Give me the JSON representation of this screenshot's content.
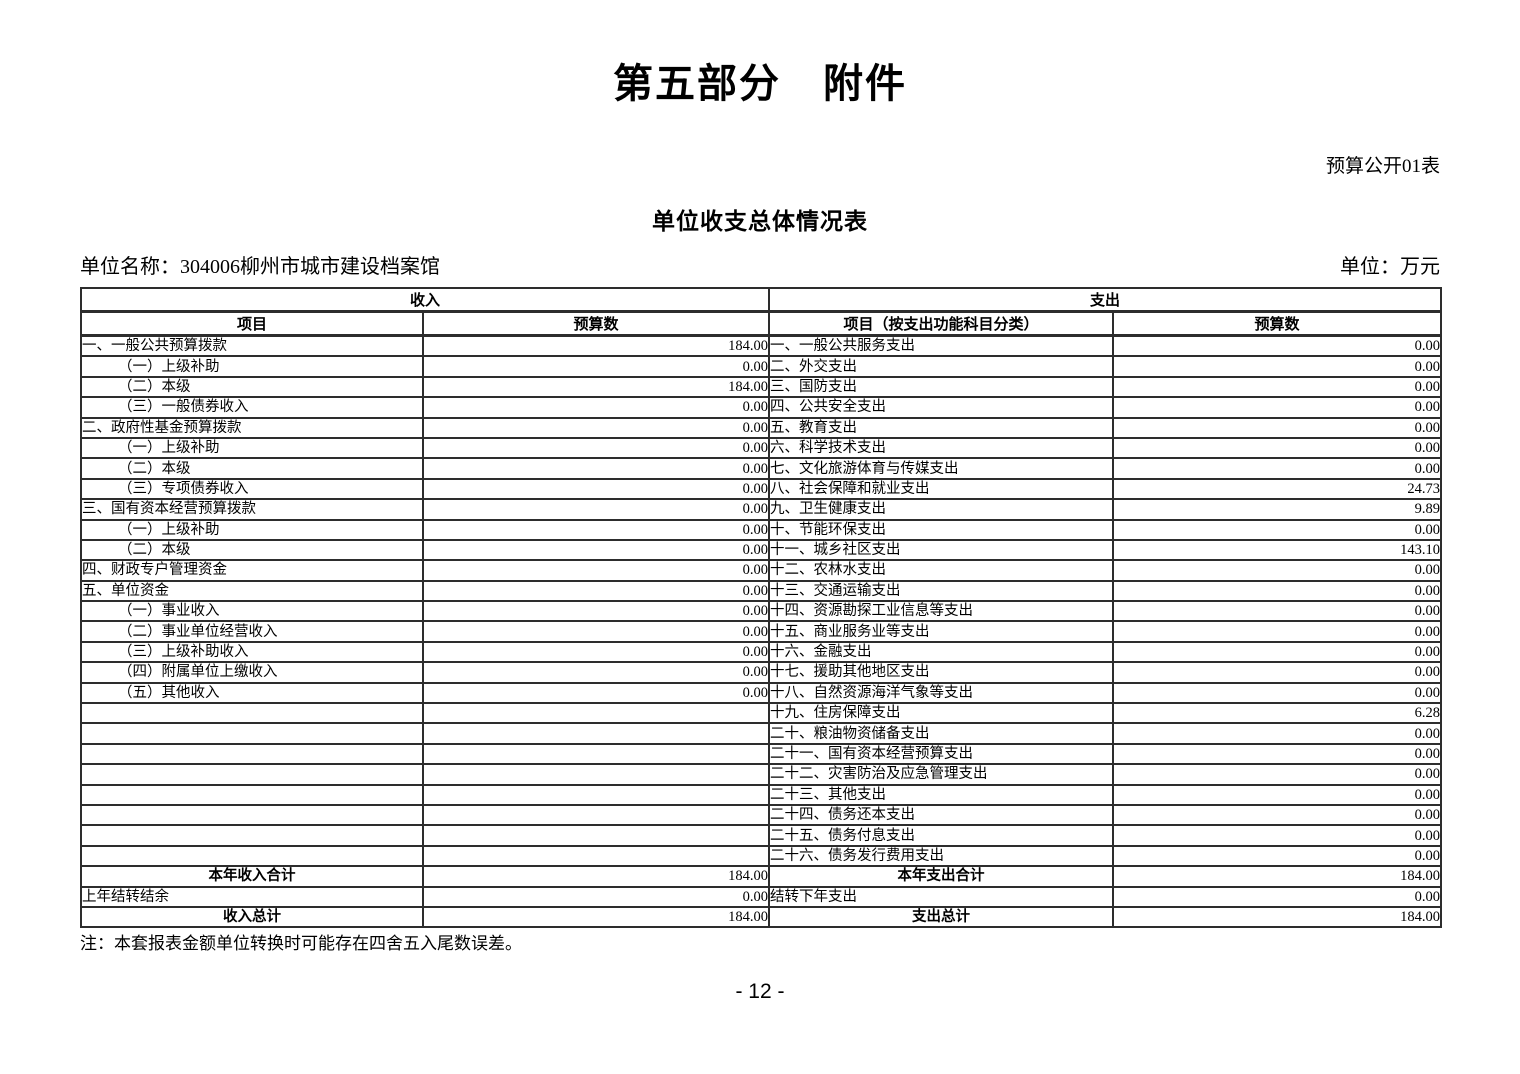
{
  "page": {
    "title": "第五部分　附件",
    "form_label": "预算公开01表",
    "subtitle": "单位收支总体情况表",
    "unit_name": "单位名称：304006柳州市城市建设档案馆",
    "unit": "单位：万元",
    "note": "注：本套报表金额单位转换时可能存在四舍五入尾数误差。",
    "page_number": "- 12 -"
  },
  "table": {
    "income": {
      "section_header": "收入",
      "item_col": "项目",
      "budget_col": "预算数"
    },
    "expense": {
      "section_header": "支出",
      "item_col": "项目（按支出功能科目分类）",
      "budget_col": "预算数"
    },
    "rows": [
      {
        "income_item": "一、一般公共预算拨款",
        "income_indent": false,
        "income_value": "184.00",
        "expense_item": "一、一般公共服务支出",
        "expense_value": "0.00"
      },
      {
        "income_item": "（一）上级补助",
        "income_indent": true,
        "income_value": "0.00",
        "expense_item": "二、外交支出",
        "expense_value": "0.00"
      },
      {
        "income_item": "（二）本级",
        "income_indent": true,
        "income_value": "184.00",
        "expense_item": "三、国防支出",
        "expense_value": "0.00"
      },
      {
        "income_item": "（三）一般债券收入",
        "income_indent": true,
        "income_value": "0.00",
        "expense_item": "四、公共安全支出",
        "expense_value": "0.00"
      },
      {
        "income_item": "二、政府性基金预算拨款",
        "income_indent": false,
        "income_value": "0.00",
        "expense_item": "五、教育支出",
        "expense_value": "0.00"
      },
      {
        "income_item": "（一）上级补助",
        "income_indent": true,
        "income_value": "0.00",
        "expense_item": "六、科学技术支出",
        "expense_value": "0.00"
      },
      {
        "income_item": "（二）本级",
        "income_indent": true,
        "income_value": "0.00",
        "expense_item": "七、文化旅游体育与传媒支出",
        "expense_value": "0.00"
      },
      {
        "income_item": "（三）专项债券收入",
        "income_indent": true,
        "income_value": "0.00",
        "expense_item": "八、社会保障和就业支出",
        "expense_value": "24.73"
      },
      {
        "income_item": "三、国有资本经营预算拨款",
        "income_indent": false,
        "income_value": "0.00",
        "expense_item": "九、卫生健康支出",
        "expense_value": "9.89"
      },
      {
        "income_item": "（一）上级补助",
        "income_indent": true,
        "income_value": "0.00",
        "expense_item": "十、节能环保支出",
        "expense_value": "0.00"
      },
      {
        "income_item": "（二）本级",
        "income_indent": true,
        "income_value": "0.00",
        "expense_item": "十一、城乡社区支出",
        "expense_value": "143.10"
      },
      {
        "income_item": "四、财政专户管理资金",
        "income_indent": false,
        "income_value": "0.00",
        "expense_item": "十二、农林水支出",
        "expense_value": "0.00"
      },
      {
        "income_item": "五、单位资金",
        "income_indent": false,
        "income_value": "0.00",
        "expense_item": "十三、交通运输支出",
        "expense_value": "0.00"
      },
      {
        "income_item": "（一）事业收入",
        "income_indent": true,
        "income_value": "0.00",
        "expense_item": "十四、资源勘探工业信息等支出",
        "expense_value": "0.00"
      },
      {
        "income_item": "（二）事业单位经营收入",
        "income_indent": true,
        "income_value": "0.00",
        "expense_item": "十五、商业服务业等支出",
        "expense_value": "0.00"
      },
      {
        "income_item": "（三）上级补助收入",
        "income_indent": true,
        "income_value": "0.00",
        "expense_item": "十六、金融支出",
        "expense_value": "0.00"
      },
      {
        "income_item": "（四）附属单位上缴收入",
        "income_indent": true,
        "income_value": "0.00",
        "expense_item": "十七、援助其他地区支出",
        "expense_value": "0.00"
      },
      {
        "income_item": "（五）其他收入",
        "income_indent": true,
        "income_value": "0.00",
        "expense_item": "十八、自然资源海洋气象等支出",
        "expense_value": "0.00"
      },
      {
        "income_item": "",
        "income_indent": false,
        "income_value": "",
        "expense_item": "十九、住房保障支出",
        "expense_value": "6.28"
      },
      {
        "income_item": "",
        "income_indent": false,
        "income_value": "",
        "expense_item": "二十、粮油物资储备支出",
        "expense_value": "0.00"
      },
      {
        "income_item": "",
        "income_indent": false,
        "income_value": "",
        "expense_item": "二十一、国有资本经营预算支出",
        "expense_value": "0.00"
      },
      {
        "income_item": "",
        "income_indent": false,
        "income_value": "",
        "expense_item": "二十二、灾害防治及应急管理支出",
        "expense_value": "0.00"
      },
      {
        "income_item": "",
        "income_indent": false,
        "income_value": "",
        "expense_item": "二十三、其他支出",
        "expense_value": "0.00"
      },
      {
        "income_item": "",
        "income_indent": false,
        "income_value": "",
        "expense_item": "二十四、债务还本支出",
        "expense_value": "0.00"
      },
      {
        "income_item": "",
        "income_indent": false,
        "income_value": "",
        "expense_item": "二十五、债务付息支出",
        "expense_value": "0.00"
      },
      {
        "income_item": "",
        "income_indent": false,
        "income_value": "",
        "expense_item": "二十六、债务发行费用支出",
        "expense_value": "0.00"
      }
    ],
    "footer_rows": [
      {
        "income_item": "本年收入合计",
        "income_value": "184.00",
        "expense_item": "本年支出合计",
        "expense_value": "184.00",
        "total": true
      },
      {
        "income_item": "上年结转结余",
        "income_value": "0.00",
        "expense_item": "结转下年支出",
        "expense_value": "0.00",
        "total": false
      },
      {
        "income_item": "收入总计",
        "income_value": "184.00",
        "expense_item": "支出总计",
        "expense_value": "184.00",
        "total": true
      }
    ]
  }
}
